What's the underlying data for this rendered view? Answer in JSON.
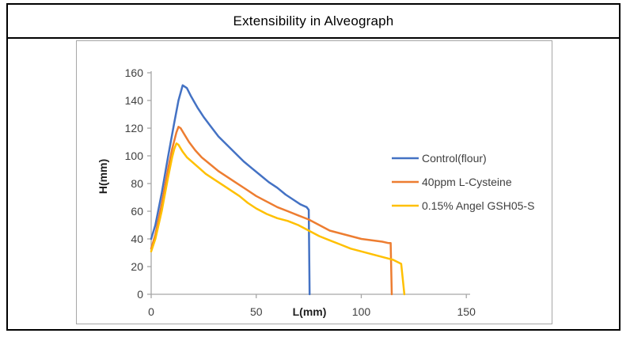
{
  "header": {
    "title": "Extensibility in Alveograph"
  },
  "chart_data": {
    "type": "line",
    "title": "Extensibility in Alveograph",
    "xlabel": "L(mm)",
    "ylabel": "H(mm)",
    "xlim": [
      0,
      157
    ],
    "ylim": [
      0,
      160
    ],
    "x_ticks": [
      0,
      50,
      100,
      150
    ],
    "y_ticks": [
      0,
      20,
      40,
      60,
      80,
      100,
      120,
      140,
      160
    ],
    "grid": false,
    "legend_position": "center-right",
    "axis_color": "#a6a6a6",
    "tick_label_color": "#404040",
    "axis_title_color": "#1f1f1f",
    "legend_text_color": "#3f3f3f",
    "series": [
      {
        "name": "Control(flour)",
        "color": "#4472C4",
        "points": [
          [
            0,
            40
          ],
          [
            2,
            50
          ],
          [
            5,
            73
          ],
          [
            8,
            99
          ],
          [
            11,
            124
          ],
          [
            13,
            140
          ],
          [
            15,
            151
          ],
          [
            17,
            149
          ],
          [
            19,
            143
          ],
          [
            22,
            135
          ],
          [
            25,
            128
          ],
          [
            28,
            122
          ],
          [
            32,
            114
          ],
          [
            36,
            108
          ],
          [
            40,
            102
          ],
          [
            44,
            96
          ],
          [
            48,
            91
          ],
          [
            52,
            86
          ],
          [
            56,
            81
          ],
          [
            60,
            77
          ],
          [
            64,
            72
          ],
          [
            68,
            68
          ],
          [
            71,
            65
          ],
          [
            74,
            63
          ],
          [
            75,
            61
          ],
          [
            75.4,
            0
          ]
        ]
      },
      {
        "name": "40ppm L-Cysteine",
        "color": "#ED7D31",
        "points": [
          [
            0,
            33
          ],
          [
            2,
            43
          ],
          [
            5,
            65
          ],
          [
            8,
            90
          ],
          [
            10,
            105
          ],
          [
            12,
            117
          ],
          [
            13,
            121
          ],
          [
            14,
            120
          ],
          [
            16,
            115
          ],
          [
            18,
            110
          ],
          [
            21,
            104
          ],
          [
            24,
            99
          ],
          [
            28,
            94
          ],
          [
            32,
            89
          ],
          [
            36,
            85
          ],
          [
            40,
            81
          ],
          [
            45,
            76
          ],
          [
            50,
            71
          ],
          [
            55,
            67
          ],
          [
            60,
            63
          ],
          [
            65,
            60
          ],
          [
            70,
            57
          ],
          [
            75,
            54
          ],
          [
            80,
            50
          ],
          [
            85,
            46
          ],
          [
            90,
            44
          ],
          [
            95,
            42
          ],
          [
            100,
            40
          ],
          [
            105,
            39
          ],
          [
            110,
            38
          ],
          [
            113,
            37
          ],
          [
            114,
            37
          ],
          [
            114.5,
            0
          ]
        ]
      },
      {
        "name": "0.15% Angel GSH05-S",
        "color": "#FFC000",
        "points": [
          [
            0,
            31
          ],
          [
            2,
            40
          ],
          [
            5,
            60
          ],
          [
            8,
            84
          ],
          [
            10,
            99
          ],
          [
            11,
            105
          ],
          [
            12,
            109
          ],
          [
            13,
            108
          ],
          [
            15,
            103
          ],
          [
            17,
            99
          ],
          [
            20,
            95
          ],
          [
            23,
            91
          ],
          [
            26,
            87
          ],
          [
            30,
            83
          ],
          [
            34,
            79
          ],
          [
            38,
            75
          ],
          [
            42,
            71
          ],
          [
            46,
            66
          ],
          [
            50,
            62
          ],
          [
            55,
            58
          ],
          [
            60,
            55
          ],
          [
            65,
            53
          ],
          [
            70,
            50
          ],
          [
            75,
            46
          ],
          [
            80,
            42
          ],
          [
            85,
            39
          ],
          [
            90,
            36
          ],
          [
            95,
            33
          ],
          [
            100,
            31
          ],
          [
            105,
            29
          ],
          [
            110,
            27
          ],
          [
            115,
            25
          ],
          [
            119,
            22
          ],
          [
            120.5,
            0
          ]
        ]
      }
    ]
  }
}
